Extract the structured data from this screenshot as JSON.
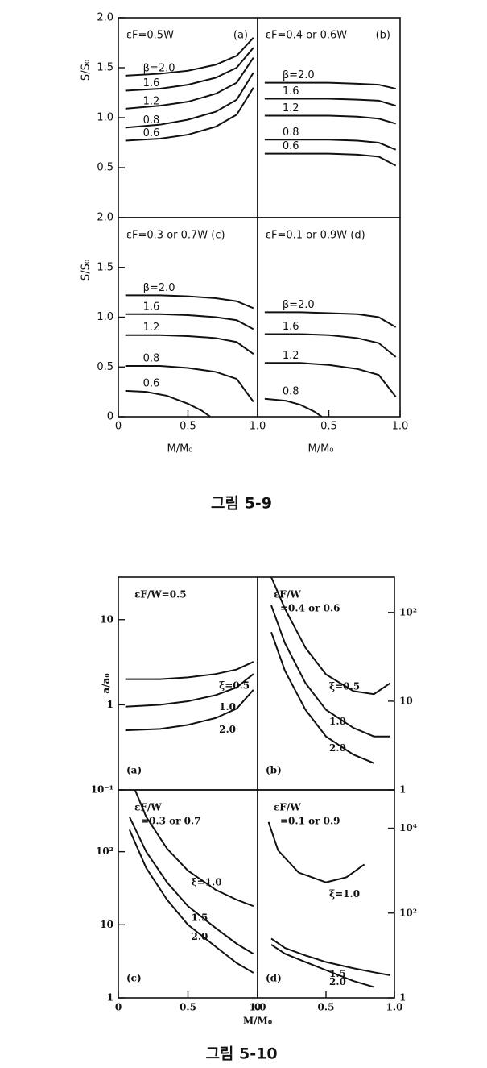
{
  "captions": [
    "그림 5-9",
    "그림 5-10"
  ],
  "chart_data": [
    {
      "type": "line",
      "title": [
        "εF=0.5W"
      ],
      "tag": "(a)",
      "ylabel": "S/S₀",
      "xlim": [
        0,
        1
      ],
      "ylim": [
        0,
        2
      ],
      "y_side": "left",
      "yticks": [
        {
          "value": 2,
          "label": "2.0"
        },
        {
          "value": 1.5,
          "label": "1.5"
        },
        {
          "value": 1,
          "label": "1.0"
        },
        {
          "value": 0.5,
          "label": "0.5"
        }
      ],
      "series": [
        {
          "name": "β=2.0",
          "color": "#111",
          "x": [
            0.05,
            0.3,
            0.5,
            0.7,
            0.85,
            0.97
          ],
          "values": [
            1.42,
            1.44,
            1.47,
            1.53,
            1.62,
            1.8
          ]
        },
        {
          "name": "1.6",
          "color": "#111",
          "x": [
            0.05,
            0.3,
            0.5,
            0.7,
            0.85,
            0.97
          ],
          "values": [
            1.27,
            1.29,
            1.33,
            1.4,
            1.5,
            1.7
          ]
        },
        {
          "name": "1.2",
          "color": "#111",
          "x": [
            0.05,
            0.3,
            0.5,
            0.7,
            0.85,
            0.97
          ],
          "values": [
            1.09,
            1.12,
            1.16,
            1.24,
            1.35,
            1.6
          ]
        },
        {
          "name": "0.8",
          "color": "#111",
          "x": [
            0.05,
            0.3,
            0.5,
            0.7,
            0.85,
            0.97
          ],
          "values": [
            0.9,
            0.93,
            0.98,
            1.06,
            1.18,
            1.45
          ]
        },
        {
          "name": "0.6",
          "color": "#111",
          "x": [
            0.05,
            0.3,
            0.5,
            0.7,
            0.85,
            0.97
          ],
          "values": [
            0.77,
            0.79,
            0.83,
            0.91,
            1.03,
            1.3
          ]
        }
      ]
    },
    {
      "type": "line",
      "title": [
        "εF=0.4 or 0.6W"
      ],
      "tag": "(b)",
      "xlim": [
        0,
        1
      ],
      "ylim": [
        0,
        2
      ],
      "y_side": "right",
      "series": [
        {
          "name": "β=2.0",
          "color": "#111",
          "x": [
            0.05,
            0.3,
            0.5,
            0.7,
            0.85,
            0.97
          ],
          "values": [
            1.35,
            1.35,
            1.35,
            1.34,
            1.33,
            1.29
          ]
        },
        {
          "name": "1.6",
          "color": "#111",
          "x": [
            0.05,
            0.3,
            0.5,
            0.7,
            0.85,
            0.97
          ],
          "values": [
            1.19,
            1.19,
            1.19,
            1.18,
            1.17,
            1.12
          ]
        },
        {
          "name": "1.2",
          "color": "#111",
          "x": [
            0.05,
            0.3,
            0.5,
            0.7,
            0.85,
            0.97
          ],
          "values": [
            1.02,
            1.02,
            1.02,
            1.01,
            0.99,
            0.94
          ]
        },
        {
          "name": "0.8",
          "color": "#111",
          "x": [
            0.05,
            0.3,
            0.5,
            0.7,
            0.85,
            0.97
          ],
          "values": [
            0.78,
            0.78,
            0.78,
            0.77,
            0.75,
            0.68
          ]
        },
        {
          "name": "0.6",
          "color": "#111",
          "x": [
            0.05,
            0.3,
            0.5,
            0.7,
            0.85,
            0.97
          ],
          "values": [
            0.64,
            0.64,
            0.64,
            0.63,
            0.61,
            0.52
          ]
        }
      ]
    },
    {
      "type": "line",
      "title": [
        "εF=0.3 or 0.7W (c)"
      ],
      "ylabel": "S/S₀",
      "xlabel": "M/M₀",
      "xlim": [
        0,
        1
      ],
      "ylim": [
        0,
        2
      ],
      "y_side": "left",
      "yticks": [
        {
          "value": 2,
          "label": "2.0"
        },
        {
          "value": 1.5,
          "label": "1.5"
        },
        {
          "value": 1,
          "label": "1.0"
        },
        {
          "value": 0.5,
          "label": "0.5"
        },
        0
      ],
      "xticks": [
        0,
        0.5,
        {
          "value": 1,
          "label": "1.0"
        }
      ],
      "series": [
        {
          "name": "β=2.0",
          "color": "#111",
          "x": [
            0.05,
            0.3,
            0.5,
            0.7,
            0.85,
            0.97
          ],
          "values": [
            1.22,
            1.22,
            1.21,
            1.19,
            1.16,
            1.09
          ]
        },
        {
          "name": "1.6",
          "color": "#111",
          "x": [
            0.05,
            0.3,
            0.5,
            0.7,
            0.85,
            0.97
          ],
          "values": [
            1.03,
            1.03,
            1.02,
            1.0,
            0.97,
            0.88
          ]
        },
        {
          "name": "1.2",
          "color": "#111",
          "x": [
            0.05,
            0.3,
            0.5,
            0.7,
            0.85,
            0.97
          ],
          "values": [
            0.82,
            0.82,
            0.81,
            0.79,
            0.75,
            0.63
          ]
        },
        {
          "name": "0.8",
          "color": "#111",
          "x": [
            0.05,
            0.3,
            0.5,
            0.7,
            0.85,
            0.97
          ],
          "values": [
            0.51,
            0.51,
            0.49,
            0.45,
            0.38,
            0.15
          ]
        },
        {
          "name": "0.6",
          "color": "#111",
          "x": [
            0.05,
            0.2,
            0.35,
            0.5,
            0.6,
            0.66
          ],
          "values": [
            0.26,
            0.25,
            0.21,
            0.13,
            0.06,
            0
          ]
        }
      ]
    },
    {
      "type": "line",
      "title": [
        "εF=0.1 or 0.9W (d)"
      ],
      "xlabel": "M/M₀",
      "xlim": [
        0,
        1
      ],
      "ylim": [
        0,
        2
      ],
      "y_side": "right",
      "xticks": [
        0.5,
        {
          "value": 1,
          "label": "1.0"
        }
      ],
      "series": [
        {
          "name": "β=2.0",
          "color": "#111",
          "x": [
            0.05,
            0.3,
            0.5,
            0.7,
            0.85,
            0.97
          ],
          "values": [
            1.05,
            1.05,
            1.04,
            1.03,
            1.0,
            0.9
          ]
        },
        {
          "name": "1.6",
          "color": "#111",
          "x": [
            0.05,
            0.3,
            0.5,
            0.7,
            0.85,
            0.97
          ],
          "values": [
            0.83,
            0.83,
            0.82,
            0.79,
            0.74,
            0.6
          ]
        },
        {
          "name": "1.2",
          "color": "#111",
          "x": [
            0.05,
            0.3,
            0.5,
            0.7,
            0.85,
            0.97
          ],
          "values": [
            0.54,
            0.54,
            0.52,
            0.48,
            0.42,
            0.2
          ]
        },
        {
          "name": "0.8",
          "color": "#111",
          "x": [
            0.05,
            0.2,
            0.3,
            0.4,
            0.45
          ],
          "values": [
            0.18,
            0.16,
            0.12,
            0.05,
            0
          ]
        }
      ]
    },
    {
      "type": "line",
      "title": [
        "εF/W=0.5"
      ],
      "tag": "(a)",
      "ylabel": "a/a₀",
      "xlim": [
        0,
        1
      ],
      "ylim": [
        0.1,
        31.6
      ],
      "log_y": true,
      "y_side": "left",
      "yticks": [
        {
          "value": 0.1,
          "label": "10⁻¹"
        },
        1,
        10
      ],
      "series": [
        {
          "name": "ξ=0.5",
          "color": "#111",
          "x": [
            0.05,
            0.3,
            0.5,
            0.7,
            0.85,
            0.97
          ],
          "values": [
            2.0,
            2.0,
            2.1,
            2.3,
            2.6,
            3.2
          ]
        },
        {
          "name": "1.0",
          "color": "#111",
          "x": [
            0.05,
            0.3,
            0.5,
            0.7,
            0.85,
            0.97
          ],
          "values": [
            0.95,
            1.0,
            1.1,
            1.3,
            1.6,
            2.3
          ]
        },
        {
          "name": "2.0",
          "color": "#111",
          "x": [
            0.05,
            0.3,
            0.5,
            0.7,
            0.85,
            0.97
          ],
          "values": [
            0.5,
            0.52,
            0.58,
            0.7,
            0.9,
            1.5
          ]
        }
      ]
    },
    {
      "type": "line",
      "title": [
        "εF/W",
        "=0.4 or 0.6"
      ],
      "tag": "(b)",
      "xlim": [
        0,
        1
      ],
      "ylim": [
        1,
        250
      ],
      "log_y": true,
      "y_side": "right",
      "yticks": [
        1,
        10,
        {
          "value": 100,
          "label": "10²"
        }
      ],
      "series": [
        {
          "name": "ξ=0.5",
          "color": "#111",
          "x": [
            0.1,
            0.2,
            0.35,
            0.5,
            0.7,
            0.85,
            0.97
          ],
          "values": [
            250,
            110,
            40,
            20,
            13,
            12,
            16
          ]
        },
        {
          "name": "1.0",
          "color": "#111",
          "x": [
            0.1,
            0.2,
            0.35,
            0.5,
            0.7,
            0.85,
            0.97
          ],
          "values": [
            120,
            45,
            16,
            8,
            5,
            4,
            4
          ]
        },
        {
          "name": "2.0",
          "color": "#111",
          "x": [
            0.1,
            0.2,
            0.35,
            0.5,
            0.7,
            0.85
          ],
          "values": [
            60,
            22,
            8,
            4,
            2.5,
            2
          ]
        }
      ]
    },
    {
      "type": "line",
      "title": [
        "εF/W",
        "=0.3 or 0.7"
      ],
      "tag": "(c)",
      "xlabel": "M/M₀",
      "xlim": [
        0,
        1
      ],
      "ylim": [
        1,
        700
      ],
      "log_y": true,
      "y_side": "left",
      "yticks": [
        1,
        10,
        {
          "value": 100,
          "label": "10²"
        }
      ],
      "xticks": [
        0,
        0.5,
        {
          "value": 1,
          "label": "1.0"
        }
      ],
      "series": [
        {
          "name": "ξ=1.0",
          "color": "#111",
          "x": [
            0.12,
            0.2,
            0.35,
            0.5,
            0.7,
            0.85,
            0.97
          ],
          "values": [
            700,
            300,
            110,
            55,
            30,
            22,
            18
          ]
        },
        {
          "name": "1.5",
          "color": "#111",
          "x": [
            0.08,
            0.2,
            0.35,
            0.5,
            0.7,
            0.85,
            0.97
          ],
          "values": [
            300,
            100,
            38,
            18,
            9,
            5.5,
            4
          ]
        },
        {
          "name": "2.0",
          "color": "#111",
          "x": [
            0.08,
            0.2,
            0.35,
            0.5,
            0.7,
            0.85,
            0.97
          ],
          "values": [
            200,
            60,
            22,
            10,
            5,
            3,
            2.2
          ]
        }
      ]
    },
    {
      "type": "line",
      "title": [
        "εF/W",
        "=0.1 or 0.9"
      ],
      "tag": "(d)",
      "xlim": [
        0,
        1
      ],
      "ylim": [
        1,
        80000
      ],
      "log_y": true,
      "y_side": "right",
      "yticks": [
        1,
        {
          "value": 100,
          "label": "10²"
        },
        {
          "value": 10000,
          "label": "10⁴"
        }
      ],
      "xticks": [
        0,
        0.5,
        {
          "value": 1,
          "label": "1.0"
        }
      ],
      "series": [
        {
          "name": "ξ=1.0",
          "color": "#111",
          "x": [
            0.08,
            0.15,
            0.3,
            0.5,
            0.65,
            0.78
          ],
          "values": [
            14000,
            3000,
            900,
            530,
            700,
            1400
          ]
        },
        {
          "name": "1.5",
          "color": "#111",
          "x": [
            0.1,
            0.2,
            0.35,
            0.5,
            0.7,
            0.85,
            0.97
          ],
          "values": [
            25,
            15,
            10,
            7,
            5,
            4,
            3.4
          ]
        },
        {
          "name": "2.0",
          "color": "#111",
          "x": [
            0.1,
            0.2,
            0.35,
            0.5,
            0.7,
            0.85
          ],
          "values": [
            18,
            11,
            7,
            4.5,
            2.5,
            1.8
          ]
        }
      ]
    }
  ]
}
